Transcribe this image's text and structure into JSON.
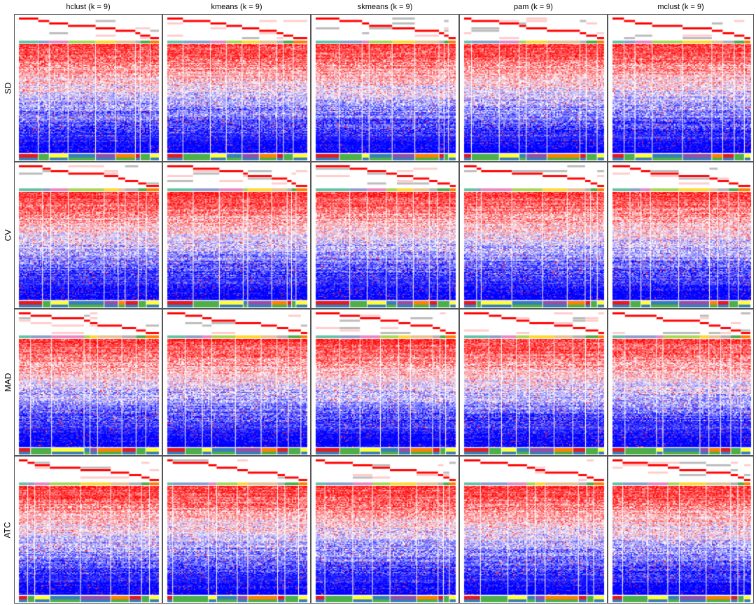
{
  "chart_data": {
    "type": "heatmap",
    "layout": "grid",
    "columns": [
      {
        "method": "hclust",
        "label": "hclust (k = 9)"
      },
      {
        "method": "kmeans",
        "label": "kmeans (k = 9)"
      },
      {
        "method": "skmeans",
        "label": "skmeans (k = 9)"
      },
      {
        "method": "pam",
        "label": "pam (k = 9)"
      },
      {
        "method": "mclust",
        "label": "mclust (k = 9)"
      }
    ],
    "rows": [
      "SD",
      "CV",
      "MAD",
      "ATC"
    ],
    "k": 9,
    "color_scale": {
      "low": "#0000ff",
      "mid": "#ffffff",
      "high": "#ff0000"
    },
    "class_colors": [
      "#66c2a5",
      "#8da0cb",
      "#e78ac3",
      "#a6d854",
      "#ffd92f",
      "#e5c494",
      "#b3b3b3",
      "#4daf4a",
      "#ff7f00"
    ],
    "annotation_colors": [
      "#e41a1c",
      "#4daf4a",
      "#ffff33",
      "#377eb8",
      "#984ea3",
      "#ff7f00"
    ]
  }
}
